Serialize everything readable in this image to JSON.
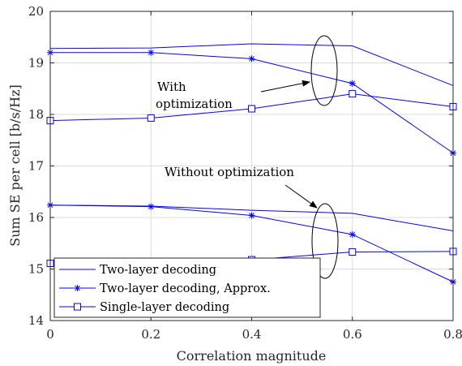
{
  "chart_data": {
    "type": "line",
    "xlabel": "Correlation magnitude",
    "ylabel": "Sum SE per cell [b/s/Hz]",
    "xlim": [
      0,
      0.8
    ],
    "ylim": [
      14,
      20
    ],
    "xticks": [
      "0",
      "0.2",
      "0.4",
      "0.6",
      "0.8"
    ],
    "yticks": [
      "14",
      "15",
      "16",
      "17",
      "18",
      "19",
      "20"
    ],
    "grid": true,
    "legend_position": "bottom-left",
    "series_color": "#0000ff",
    "x": [
      0,
      0.2,
      0.4,
      0.6,
      0.8
    ],
    "series": [
      {
        "name": "Two-layer decoding",
        "group": "with",
        "marker": "none",
        "values": [
          19.28,
          19.29,
          19.37,
          19.33,
          18.56
        ]
      },
      {
        "name": "Two-layer decoding, Approx.",
        "group": "with",
        "marker": "star",
        "values": [
          19.2,
          19.2,
          19.08,
          18.6,
          17.25
        ]
      },
      {
        "name": "Single-layer decoding",
        "group": "with",
        "marker": "square",
        "values": [
          17.88,
          17.93,
          18.11,
          18.4,
          18.15
        ]
      },
      {
        "name": "Two-layer decoding",
        "group": "without",
        "marker": "none",
        "values": [
          16.24,
          16.22,
          16.14,
          16.08,
          15.74
        ]
      },
      {
        "name": "Two-layer decoding, Approx.",
        "group": "without",
        "marker": "star",
        "values": [
          16.24,
          16.21,
          16.04,
          15.67,
          14.75
        ]
      },
      {
        "name": "Single-layer decoding",
        "group": "without",
        "marker": "square",
        "values": [
          15.11,
          15.14,
          15.18,
          15.33,
          15.34
        ]
      }
    ],
    "annotations": {
      "with_line1": "With",
      "with_line2": "optimization",
      "without": "Without optimization"
    },
    "legend": [
      {
        "label": "Two-layer decoding",
        "marker": "none"
      },
      {
        "label": "Two-layer decoding, Approx.",
        "marker": "star"
      },
      {
        "label": "Single-layer decoding",
        "marker": "square"
      }
    ]
  }
}
